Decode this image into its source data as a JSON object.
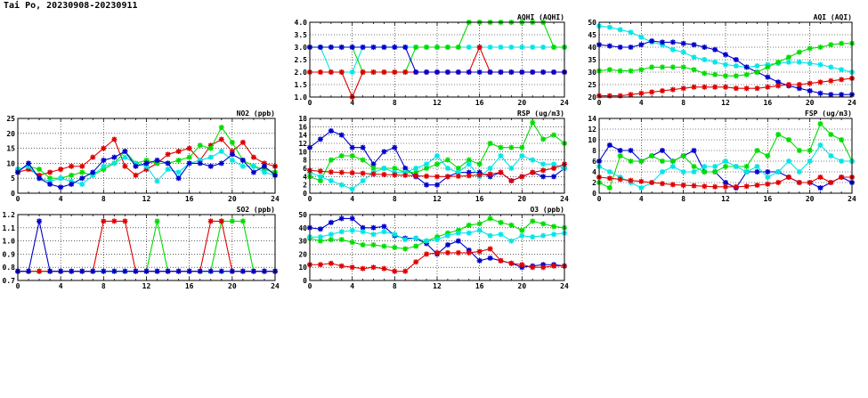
{
  "page": {
    "title": "Tai Po, 20230908-20230911"
  },
  "colors": {
    "blue": "#0000cc",
    "red": "#e00000",
    "green": "#00dd00",
    "cyan": "#00e5e5",
    "grid": "#000000"
  },
  "chart_data": [
    {
      "id": "aqhi",
      "type": "line",
      "title": "AQHI (AQHI)",
      "xlim": [
        0,
        24
      ],
      "xticks": [
        0,
        4,
        8,
        12,
        16,
        20,
        24
      ],
      "ylim": [
        1,
        4
      ],
      "yticks": [
        "1.0",
        "1.5",
        "2.0",
        "2.5",
        "3.0",
        "3.5",
        "4.0"
      ],
      "series": [
        {
          "color": "cyan",
          "values": [
            3,
            3,
            2,
            2,
            2,
            3,
            3,
            3,
            3,
            3,
            3,
            3,
            3,
            3,
            3,
            3,
            3,
            3,
            3,
            3,
            3,
            3,
            3,
            3,
            3
          ]
        },
        {
          "color": "green",
          "values": [
            3,
            3,
            3,
            3,
            3,
            2,
            2,
            2,
            2,
            2,
            3,
            3,
            3,
            3,
            3,
            4,
            4,
            4,
            4,
            4,
            4,
            4,
            4,
            3,
            3
          ]
        },
        {
          "color": "red",
          "values": [
            2,
            2,
            2,
            2,
            1,
            2,
            2,
            2,
            2,
            2,
            2,
            2,
            2,
            2,
            2,
            2,
            3,
            2,
            2,
            2,
            2,
            2,
            2,
            2,
            2
          ]
        },
        {
          "color": "blue",
          "values": [
            3,
            3,
            3,
            3,
            3,
            3,
            3,
            3,
            3,
            3,
            2,
            2,
            2,
            2,
            2,
            2,
            2,
            2,
            2,
            2,
            2,
            2,
            2,
            2,
            2
          ]
        }
      ]
    },
    {
      "id": "aqi",
      "type": "line",
      "title": "AQI (AQI)",
      "xlim": [
        0,
        24
      ],
      "xticks": [
        0,
        4,
        8,
        12,
        16,
        20,
        24
      ],
      "ylim": [
        20,
        50
      ],
      "yticks": [
        "20",
        "25",
        "30",
        "35",
        "40",
        "45",
        "50"
      ],
      "series": [
        {
          "color": "cyan",
          "values": [
            48.5,
            48,
            47,
            46,
            44,
            42,
            41,
            39,
            38,
            36,
            35,
            34,
            33,
            32.5,
            32,
            32.5,
            33,
            33.5,
            34,
            34,
            33.5,
            33,
            32,
            31,
            30
          ]
        },
        {
          "color": "blue",
          "values": [
            41,
            40.5,
            40,
            40,
            41,
            42.5,
            42,
            42,
            41.5,
            41,
            40,
            39,
            37,
            35,
            32,
            30,
            28,
            26,
            24.5,
            23.5,
            22.5,
            21.5,
            21,
            21,
            21
          ]
        },
        {
          "color": "green",
          "values": [
            30.5,
            31,
            30.5,
            30.5,
            31,
            32,
            32,
            32,
            32,
            31,
            29.5,
            29,
            28.5,
            28.5,
            29,
            30,
            32,
            34,
            36,
            38,
            39.5,
            40,
            41,
            41.5,
            41.5
          ]
        },
        {
          "color": "red",
          "values": [
            20.5,
            20.5,
            20.5,
            21,
            21.5,
            22,
            22.5,
            23,
            23.5,
            24,
            24,
            24,
            24,
            23.5,
            23.5,
            23.5,
            24,
            24.5,
            25,
            25,
            25.5,
            26,
            26.5,
            27,
            27.5
          ]
        }
      ]
    },
    {
      "id": "no2",
      "type": "line",
      "title": "NO2 (ppb)",
      "xlim": [
        0,
        24
      ],
      "xticks": [
        0,
        4,
        8,
        12,
        16,
        20,
        24
      ],
      "ylim": [
        0,
        25
      ],
      "yticks": [
        "0",
        "5",
        "10",
        "15",
        "20",
        "25"
      ],
      "series": [
        {
          "color": "red",
          "values": [
            7,
            8,
            6,
            7,
            8,
            9,
            9,
            12,
            15,
            18,
            9,
            6,
            8,
            10,
            13,
            14,
            15,
            11,
            16,
            18,
            14,
            17,
            12,
            10,
            9
          ]
        },
        {
          "color": "green",
          "values": [
            8,
            9,
            8,
            5,
            5,
            6,
            7,
            6,
            8,
            10,
            14,
            10,
            11,
            10,
            10,
            11,
            12,
            16,
            15,
            22,
            17,
            11,
            9,
            8,
            7
          ]
        },
        {
          "color": "cyan",
          "values": [
            8,
            9,
            5,
            4,
            5,
            4,
            3,
            6,
            9,
            10,
            12,
            10,
            9,
            4,
            8,
            7,
            10,
            11,
            12,
            14,
            11,
            9,
            9,
            7,
            6
          ]
        },
        {
          "color": "blue",
          "values": [
            7,
            10,
            5,
            3,
            2,
            3,
            5,
            7,
            11,
            12,
            14,
            9,
            10,
            11,
            10,
            5,
            10,
            10,
            9,
            10,
            13,
            11,
            7,
            9,
            6
          ]
        }
      ]
    },
    {
      "id": "rsp",
      "type": "line",
      "title": "RSP (ug/m3)",
      "xlim": [
        0,
        24
      ],
      "xticks": [
        0,
        4,
        8,
        12,
        16,
        20,
        24
      ],
      "ylim": [
        0,
        18
      ],
      "yticks": [
        "0",
        "2",
        "4",
        "6",
        "8",
        "10",
        "12",
        "14",
        "16",
        "18"
      ],
      "series": [
        {
          "color": "blue",
          "values": [
            11,
            13,
            15,
            14,
            11,
            11,
            7,
            10,
            11,
            6,
            4,
            2,
            2,
            4,
            5,
            5,
            5,
            4,
            5,
            3,
            4,
            5,
            4,
            4,
            6
          ]
        },
        {
          "color": "green",
          "values": [
            4,
            3,
            8,
            9,
            9,
            8,
            6,
            6,
            6,
            5,
            5,
            6,
            7,
            8,
            6,
            8,
            7,
            12,
            11,
            11,
            11,
            17,
            13,
            14,
            12
          ]
        },
        {
          "color": "cyan",
          "values": [
            5,
            4,
            3,
            2,
            1,
            3,
            5,
            6,
            5,
            5,
            6,
            7,
            9,
            6,
            5,
            7,
            4,
            6,
            9,
            6,
            9,
            8,
            7,
            7,
            6
          ]
        },
        {
          "color": "red",
          "values": [
            5.5,
            5.3,
            5.1,
            5,
            4.9,
            4.8,
            4.6,
            4.5,
            4.4,
            4.3,
            4.2,
            4.1,
            4,
            4,
            4.1,
            4.2,
            4.4,
            4.6,
            5,
            3,
            4,
            5,
            5.5,
            6,
            7
          ]
        }
      ]
    },
    {
      "id": "fsp",
      "type": "line",
      "title": "FSP (ug/m3)",
      "xlim": [
        0,
        24
      ],
      "xticks": [
        0,
        4,
        8,
        12,
        16,
        20,
        24
      ],
      "ylim": [
        0,
        14
      ],
      "yticks": [
        "0",
        "2",
        "4",
        "6",
        "8",
        "10",
        "12",
        "14"
      ],
      "series": [
        {
          "color": "blue",
          "values": [
            6,
            9,
            8,
            8,
            6,
            7,
            8,
            6,
            7,
            8,
            4,
            4,
            2,
            1,
            4,
            4,
            4,
            4,
            3,
            2,
            2,
            1,
            2,
            3,
            2
          ]
        },
        {
          "color": "green",
          "values": [
            2,
            1,
            7,
            6,
            6,
            7,
            6,
            6,
            7,
            5,
            4,
            4,
            5,
            5,
            5,
            8,
            7,
            11,
            10,
            8,
            8,
            13,
            11,
            10,
            6
          ]
        },
        {
          "color": "cyan",
          "values": [
            5,
            4,
            3,
            2,
            1,
            2,
            4,
            5,
            4,
            4,
            5,
            5,
            6,
            5,
            4,
            5,
            3,
            4,
            6,
            4,
            6,
            9,
            7,
            6,
            6
          ]
        },
        {
          "color": "red",
          "values": [
            3,
            2.8,
            2.6,
            2.4,
            2.2,
            2,
            1.8,
            1.6,
            1.5,
            1.4,
            1.3,
            1.2,
            1.2,
            1.2,
            1.3,
            1.5,
            1.7,
            2,
            3,
            2,
            2,
            3,
            2,
            3,
            3
          ]
        }
      ]
    },
    {
      "id": "so2",
      "type": "line",
      "title": "SO2 (ppb)",
      "xlim": [
        0,
        24
      ],
      "xticks": [
        0,
        4,
        8,
        12,
        16,
        20,
        24
      ],
      "ylim": [
        0.7,
        1.2
      ],
      "yticks": [
        "0.7",
        "0.8",
        "0.9",
        "1.0",
        "1.1",
        "1.2"
      ],
      "series": [
        {
          "color": "cyan",
          "values": [
            0.77,
            0.77,
            0.77,
            0.77,
            0.77,
            0.77,
            0.77,
            0.77,
            0.77,
            0.77,
            0.77,
            0.77,
            0.77,
            0.77,
            0.77,
            0.77,
            0.77,
            0.77,
            0.77,
            0.77,
            0.77,
            0.77,
            0.77,
            0.77,
            0.77
          ]
        },
        {
          "color": "green",
          "values": [
            0.77,
            0.77,
            0.77,
            0.77,
            0.77,
            0.77,
            0.77,
            0.77,
            0.77,
            0.77,
            0.77,
            0.77,
            0.77,
            1.15,
            0.77,
            0.77,
            0.77,
            0.77,
            0.77,
            1.15,
            1.15,
            1.15,
            0.77,
            0.77,
            0.77
          ]
        },
        {
          "color": "red",
          "values": [
            0.77,
            0.77,
            0.77,
            0.77,
            0.77,
            0.77,
            0.77,
            0.77,
            1.15,
            1.15,
            1.15,
            0.77,
            0.77,
            0.77,
            0.77,
            0.77,
            0.77,
            0.77,
            1.15,
            1.15,
            0.77,
            0.77,
            0.77,
            0.77,
            0.77
          ]
        },
        {
          "color": "blue",
          "values": [
            0.77,
            0.77,
            1.15,
            0.77,
            0.77,
            0.77,
            0.77,
            0.77,
            0.77,
            0.77,
            0.77,
            0.77,
            0.77,
            0.77,
            0.77,
            0.77,
            0.77,
            0.77,
            0.77,
            0.77,
            0.77,
            0.77,
            0.77,
            0.77,
            0.77
          ]
        }
      ]
    },
    {
      "id": "o3",
      "type": "line",
      "title": "O3 (ppb)",
      "xlim": [
        0,
        24
      ],
      "xticks": [
        0,
        4,
        8,
        12,
        16,
        20,
        24
      ],
      "ylim": [
        0,
        50
      ],
      "yticks": [
        "0",
        "10",
        "20",
        "30",
        "40",
        "50"
      ],
      "series": [
        {
          "color": "blue",
          "values": [
            40,
            39,
            44,
            47,
            47,
            40,
            40,
            41,
            34,
            32,
            32,
            28,
            20,
            27,
            30,
            23,
            15,
            17,
            15,
            13,
            10,
            11,
            12,
            12,
            11
          ]
        },
        {
          "color": "green",
          "values": [
            32,
            30,
            31,
            31,
            29,
            27,
            27,
            26,
            25,
            24,
            26,
            30,
            33,
            36,
            38,
            42,
            43,
            47,
            44,
            42,
            38,
            45,
            43,
            41,
            40
          ]
        },
        {
          "color": "cyan",
          "values": [
            33,
            33,
            35,
            37,
            38,
            37,
            35,
            37,
            35,
            31,
            32,
            30,
            31,
            34,
            36,
            36,
            38,
            34,
            35,
            30,
            34,
            33,
            34,
            35,
            36
          ]
        },
        {
          "color": "red",
          "values": [
            12,
            12,
            13,
            11,
            10,
            9,
            10,
            9,
            7,
            7,
            14,
            20,
            21,
            21,
            21,
            21,
            22,
            24,
            15,
            13,
            12,
            10,
            10,
            11,
            11
          ]
        }
      ]
    }
  ]
}
